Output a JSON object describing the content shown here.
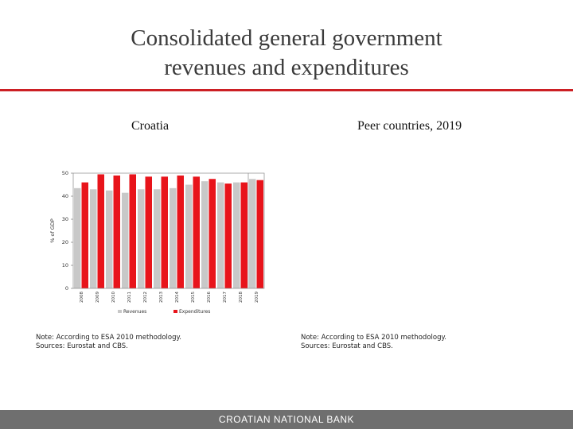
{
  "title": {
    "line1": "Consolidated general government",
    "line2": "revenues and expenditures"
  },
  "left_heading": "Croatia",
  "right_heading": "Peer countries, 2019",
  "left_note": {
    "line1": "Note: According to ESA 2010 methodology.",
    "line2": "Sources: Eurostat and CBS."
  },
  "right_note": {
    "line1": "Note: According to ESA 2010 methodology.",
    "line2": "Sources: Eurostat and CBS."
  },
  "footer": {
    "bank_name": "CROATIAN NATIONAL BANK"
  },
  "colors": {
    "accent_rule": "#cc1f24",
    "revenues": "#c8c8c8",
    "expenditures": "#e8141b",
    "footer_bg": "#6f6f6f"
  },
  "chart_data": {
    "type": "bar",
    "title": "",
    "xlabel": "",
    "ylabel": "% of GDP",
    "ylim": [
      0,
      50
    ],
    "yticks": [
      0,
      10,
      20,
      30,
      40,
      50
    ],
    "categories": [
      "2008",
      "2009",
      "2010",
      "2011",
      "2012",
      "2013",
      "2014",
      "2015",
      "2016",
      "2017",
      "2018",
      "2019"
    ],
    "series": [
      {
        "name": "Revenues",
        "values": [
          43.5,
          43.0,
          42.5,
          41.5,
          43.0,
          43.0,
          43.5,
          45.0,
          46.5,
          46.0,
          46.0,
          47.5
        ]
      },
      {
        "name": "Expenditures",
        "values": [
          46.0,
          49.5,
          49.0,
          49.5,
          48.5,
          48.5,
          49.0,
          48.5,
          47.5,
          45.5,
          46.0,
          47.0
        ]
      }
    ],
    "grid": false,
    "legend": "bottom"
  }
}
